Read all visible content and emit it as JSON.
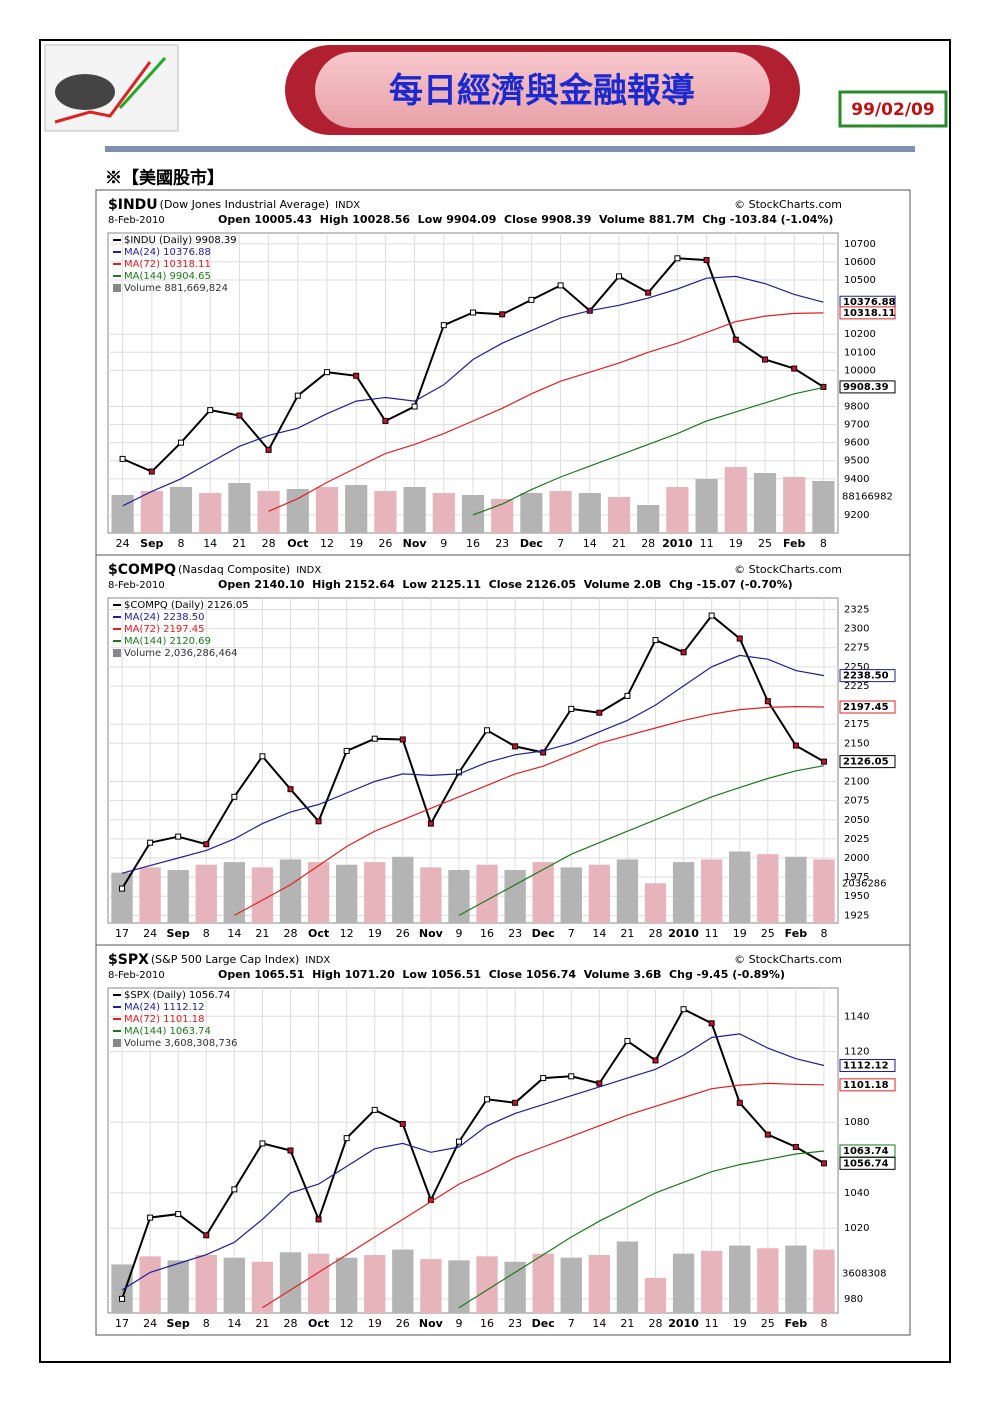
{
  "header": {
    "title": "每日經濟與金融報導",
    "date": "99/02/09",
    "section": "※【美國股市】"
  },
  "chart_data": [
    {
      "type": "line",
      "symbol": "$INDU",
      "name": "(Dow Jones Industrial Average)",
      "exchange": "INDX",
      "source": "© StockCharts.com",
      "date": "8-Feb-2010",
      "quote": "Open 10005.43  High 10028.56  Low 9904.09  Close 9908.39  Volume 881.7M  Chg -103.84 (-1.04%)",
      "volume_label": "88166982",
      "categories": [
        "24",
        "Sep",
        "8",
        "14",
        "21",
        "28",
        "Oct",
        "12",
        "19",
        "26",
        "Nov",
        "9",
        "16",
        "23",
        "Dec",
        "7",
        "14",
        "21",
        "28",
        "2010",
        "11",
        "19",
        "25",
        "Feb",
        "8"
      ],
      "series": [
        {
          "name": "$INDU (Daily) 9908.39",
          "color": "#000000",
          "values": [
            9510,
            9440,
            9600,
            9780,
            9750,
            9560,
            9860,
            9990,
            9970,
            9720,
            9800,
            10250,
            10320,
            10310,
            10390,
            10470,
            10330,
            10520,
            10430,
            10620,
            10610,
            10170,
            10060,
            10010,
            9908.39
          ]
        },
        {
          "name": "MA(24) 10376.88",
          "color": "#1f1f9a",
          "values": [
            9250,
            9330,
            9400,
            9490,
            9580,
            9640,
            9680,
            9760,
            9830,
            9850,
            9830,
            9920,
            10060,
            10150,
            10220,
            10290,
            10330,
            10360,
            10400,
            10450,
            10510,
            10520,
            10480,
            10420,
            10376.88
          ]
        },
        {
          "name": "MA(72) 10318.11",
          "color": "#e02020",
          "values": [
            null,
            null,
            null,
            null,
            null,
            9220,
            9290,
            9380,
            9460,
            9540,
            9590,
            9650,
            9720,
            9790,
            9870,
            9940,
            9990,
            10040,
            10100,
            10150,
            10210,
            10270,
            10300,
            10315,
            10318.11
          ]
        },
        {
          "name": "MA(144) 9904.65",
          "color": "#1a7a1a",
          "values": [
            null,
            null,
            null,
            null,
            null,
            null,
            null,
            null,
            null,
            null,
            null,
            null,
            9200,
            9260,
            9340,
            9410,
            9470,
            9530,
            9590,
            9650,
            9720,
            9770,
            9820,
            9870,
            9904.65
          ]
        }
      ],
      "volume": {
        "name": "Volume 881,669,824",
        "color": "#b4b4b4",
        "values": [
          190000000,
          210000000,
          230000000,
          200000000,
          250000000,
          210000000,
          220000000,
          230000000,
          240000000,
          210000000,
          230000000,
          200000000,
          190000000,
          170000000,
          200000000,
          210000000,
          200000000,
          180000000,
          140000000,
          230000000,
          270000000,
          330000000,
          300000000,
          280000000,
          260000000
        ]
      },
      "markers": [
        {
          "value": 10376.88,
          "label": "10376.88",
          "color": "#1f1f9a"
        },
        {
          "value": 10318.11,
          "label": "10318.11",
          "color": "#e02020"
        },
        {
          "value": 9908.39,
          "label": "9908.39",
          "color": "#000000"
        }
      ],
      "ylim": [
        9100,
        10760
      ],
      "yticks": [
        9200,
        9400,
        9500,
        9600,
        9700,
        9800,
        10000,
        10100,
        10200,
        10500,
        10600,
        10700
      ],
      "grid": true
    },
    {
      "type": "line",
      "symbol": "$COMPQ",
      "name": "(Nasdaq Composite)",
      "exchange": "INDX",
      "source": "© StockCharts.com",
      "date": "8-Feb-2010",
      "quote": "Open 2140.10  High 2152.64  Low 2125.11  Close 2126.05  Volume 2.0B  Chg -15.07 (-0.70%)",
      "volume_label": "2036286",
      "categories": [
        "17",
        "24",
        "Sep",
        "8",
        "14",
        "21",
        "28",
        "Oct",
        "12",
        "19",
        "26",
        "Nov",
        "9",
        "16",
        "23",
        "Dec",
        "7",
        "14",
        "21",
        "28",
        "2010",
        "11",
        "19",
        "25",
        "Feb",
        "8"
      ],
      "series": [
        {
          "name": "$COMPQ (Daily) 2126.05",
          "color": "#000000",
          "values": [
            1960,
            2020,
            2028,
            2018,
            2080,
            2133,
            2090,
            2048,
            2140,
            2156,
            2155,
            2045,
            2112,
            2167,
            2146,
            2138,
            2195,
            2190,
            2212,
            2285,
            2269,
            2317,
            2287,
            2205,
            2147,
            2126.05
          ]
        },
        {
          "name": "MA(24) 2238.50",
          "color": "#1f1f9a",
          "values": [
            1980,
            1990,
            2000,
            2010,
            2025,
            2045,
            2060,
            2070,
            2085,
            2100,
            2110,
            2108,
            2110,
            2125,
            2135,
            2140,
            2150,
            2165,
            2180,
            2200,
            2225,
            2250,
            2265,
            2260,
            2245,
            2238.5
          ]
        },
        {
          "name": "MA(72) 2197.45",
          "color": "#e02020",
          "values": [
            null,
            null,
            null,
            null,
            1925,
            1945,
            1965,
            1990,
            2015,
            2035,
            2050,
            2065,
            2080,
            2095,
            2110,
            2120,
            2135,
            2150,
            2160,
            2170,
            2180,
            2188,
            2194,
            2197,
            2198,
            2197.45
          ]
        },
        {
          "name": "MA(144) 2120.69",
          "color": "#1a7a1a",
          "values": [
            null,
            null,
            null,
            null,
            null,
            null,
            null,
            null,
            null,
            null,
            null,
            null,
            1925,
            1945,
            1965,
            1985,
            2005,
            2020,
            2035,
            2050,
            2065,
            2080,
            2092,
            2104,
            2114,
            2120.69
          ]
        }
      ],
      "volume": {
        "name": "Volume 2,036,286,464",
        "color": "#b4b4b4",
        "values": [
          1900000000,
          2100000000,
          2000000000,
          2200000000,
          2300000000,
          2100000000,
          2400000000,
          2300000000,
          2200000000,
          2300000000,
          2500000000,
          2100000000,
          2000000000,
          2200000000,
          2000000000,
          2300000000,
          2100000000,
          2200000000,
          2400000000,
          1500000000,
          2300000000,
          2400000000,
          2700000000,
          2600000000,
          2500000000,
          2400000000
        ]
      },
      "markers": [
        {
          "value": 2238.5,
          "label": "2238.50",
          "color": "#1f1f9a"
        },
        {
          "value": 2197.45,
          "label": "2197.45",
          "color": "#e02020"
        },
        {
          "value": 2126.05,
          "label": "2126.05",
          "color": "#000000"
        }
      ],
      "ylim": [
        1915,
        2340
      ],
      "yticks": [
        1925,
        1950,
        1975,
        2000,
        2025,
        2050,
        2075,
        2100,
        2150,
        2175,
        2225,
        2250,
        2275,
        2300,
        2325
      ],
      "grid": true
    },
    {
      "type": "line",
      "symbol": "$SPX",
      "name": "(S&P 500 Large Cap Index)",
      "exchange": "INDX",
      "source": "© StockCharts.com",
      "date": "8-Feb-2010",
      "quote": "Open 1065.51  High 1071.20  Low 1056.51  Close 1056.74  Volume 3.6B  Chg -9.45 (-0.89%)",
      "volume_label": "3608308",
      "categories": [
        "17",
        "24",
        "Sep",
        "8",
        "14",
        "21",
        "28",
        "Oct",
        "12",
        "19",
        "26",
        "Nov",
        "9",
        "16",
        "23",
        "Dec",
        "7",
        "14",
        "21",
        "28",
        "2010",
        "11",
        "19",
        "25",
        "Feb",
        "8"
      ],
      "series": [
        {
          "name": "$SPX (Daily) 1056.74",
          "color": "#000000",
          "values": [
            980,
            1026,
            1028,
            1016,
            1042,
            1068,
            1064,
            1025,
            1071,
            1087,
            1079,
            1036,
            1069,
            1093,
            1091,
            1105,
            1106,
            1102,
            1126,
            1115,
            1144,
            1136,
            1091,
            1073,
            1066,
            1056.74
          ]
        },
        {
          "name": "MA(24) 1112.12",
          "color": "#1f1f9a",
          "values": [
            985,
            995,
            1000,
            1005,
            1012,
            1025,
            1040,
            1045,
            1055,
            1065,
            1068,
            1063,
            1066,
            1078,
            1085,
            1090,
            1095,
            1100,
            1105,
            1110,
            1118,
            1128,
            1130,
            1122,
            1116,
            1112.12
          ]
        },
        {
          "name": "MA(72) 1101.18",
          "color": "#e02020",
          "values": [
            null,
            null,
            null,
            null,
            null,
            975,
            985,
            995,
            1005,
            1015,
            1025,
            1035,
            1045,
            1052,
            1060,
            1066,
            1072,
            1078,
            1084,
            1089,
            1094,
            1099,
            1101,
            1102,
            1101.5,
            1101.18
          ]
        },
        {
          "name": "MA(144) 1063.74",
          "color": "#1a7a1a",
          "values": [
            null,
            null,
            null,
            null,
            null,
            null,
            null,
            null,
            null,
            null,
            null,
            null,
            975,
            985,
            995,
            1005,
            1015,
            1024,
            1032,
            1040,
            1046,
            1052,
            1056,
            1059,
            1062,
            1063.74
          ]
        }
      ],
      "volume": {
        "name": "Volume 3,608,308,736",
        "color": "#b4b4b4",
        "values": [
          3600000000,
          4200000000,
          3900000000,
          4300000000,
          4100000000,
          3800000000,
          4500000000,
          4400000000,
          4100000000,
          4300000000,
          4700000000,
          4000000000,
          3900000000,
          4200000000,
          3800000000,
          4400000000,
          4100000000,
          4300000000,
          5300000000,
          2600000000,
          4400000000,
          4600000000,
          5000000000,
          4800000000,
          5000000000,
          4700000000
        ]
      },
      "markers": [
        {
          "value": 1112.12,
          "label": "1112.12",
          "color": "#1f1f9a"
        },
        {
          "value": 1101.18,
          "label": "1101.18",
          "color": "#e02020"
        },
        {
          "value": 1063.74,
          "label": "1063.74",
          "color": "#1a7a1a"
        },
        {
          "value": 1056.74,
          "label": "1056.74",
          "color": "#000000"
        }
      ],
      "ylim": [
        972,
        1156
      ],
      "yticks": [
        980,
        1020,
        1040,
        1080,
        1120,
        1140
      ],
      "grid": true
    }
  ]
}
